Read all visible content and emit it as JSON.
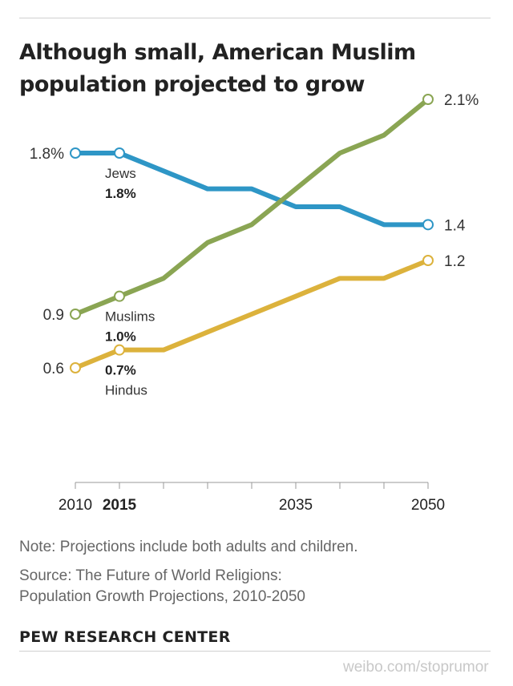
{
  "title_line1": "Although small, American Muslim",
  "title_line2": "population projected to grow",
  "chart_data": {
    "type": "line",
    "title": "Although small, American Muslim population projected to grow",
    "x": [
      2010,
      2015,
      2020,
      2025,
      2030,
      2035,
      2040,
      2045,
      2050
    ],
    "xlim": [
      2010,
      2050
    ],
    "x_ticks": [
      2010,
      2015,
      2020,
      2025,
      2030,
      2035,
      2040,
      2045,
      2050
    ],
    "x_tick_labels": [
      {
        "year": 2010,
        "text": "2010",
        "bold": false
      },
      {
        "year": 2015,
        "text": "2015",
        "bold": true
      },
      {
        "year": 2035,
        "text": "2035",
        "bold": false
      },
      {
        "year": 2050,
        "text": "2050",
        "bold": false
      }
    ],
    "ylim": [
      0.6,
      2.1
    ],
    "grid": false,
    "series": [
      {
        "name": "Jews",
        "color": "#2e96c6",
        "values": [
          1.8,
          1.8,
          1.7,
          1.6,
          1.6,
          1.5,
          1.5,
          1.4,
          1.4
        ]
      },
      {
        "name": "Muslims",
        "color": "#8aa553",
        "values": [
          0.9,
          1.0,
          1.1,
          1.3,
          1.4,
          1.6,
          1.8,
          1.9,
          2.1
        ]
      },
      {
        "name": "Hindus",
        "color": "#dcb23c",
        "values": [
          0.6,
          0.7,
          0.7,
          0.8,
          0.9,
          1.0,
          1.1,
          1.1,
          1.2
        ]
      }
    ],
    "markers": [
      {
        "series": 0,
        "index": 0
      },
      {
        "series": 0,
        "index": 1
      },
      {
        "series": 0,
        "index": 8
      },
      {
        "series": 1,
        "index": 0
      },
      {
        "series": 1,
        "index": 1
      },
      {
        "series": 1,
        "index": 8
      },
      {
        "series": 2,
        "index": 0
      },
      {
        "series": 2,
        "index": 1
      },
      {
        "series": 2,
        "index": 8
      }
    ],
    "start_labels": [
      {
        "series": 0,
        "text": "1.8%"
      },
      {
        "series": 1,
        "text": "0.9"
      },
      {
        "series": 2,
        "text": "0.6"
      }
    ],
    "end_labels": [
      {
        "series": 1,
        "text": "2.1%"
      },
      {
        "series": 0,
        "text": "1.4"
      },
      {
        "series": 2,
        "text": "1.2"
      }
    ],
    "annotations": [
      {
        "name": "Jews",
        "series": 0,
        "label": "Jews",
        "value": "1.8%",
        "order": "name-first"
      },
      {
        "name": "Muslims",
        "series": 1,
        "label": "Muslims",
        "value": "1.0%",
        "order": "name-first"
      },
      {
        "name": "Hindus",
        "series": 2,
        "label": "Hindus",
        "value": "0.7%",
        "order": "value-first"
      }
    ]
  },
  "note": "Note: Projections include both adults and children.",
  "source_line1": "Source: The Future of World Religions:",
  "source_line2": "Population Growth Projections, 2010-2050",
  "brand": "PEW RESEARCH CENTER",
  "watermark": "weibo.com/stoprumor"
}
